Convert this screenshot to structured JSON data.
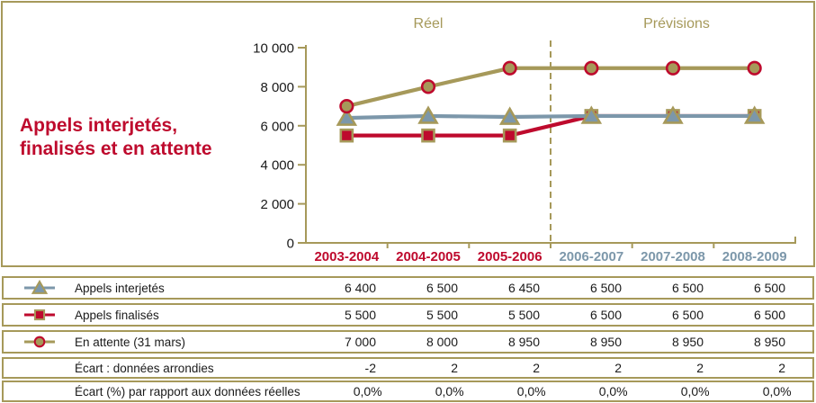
{
  "colors": {
    "olive": "#A6995A",
    "crimson": "#BE0A2D",
    "blue_gray": "#7C97AA",
    "text": "#1a1a1a",
    "background": "#FFFFFF"
  },
  "chart_title": {
    "line1": "Appels interjetés,",
    "line2": "finalisés et en attente"
  },
  "chart_data": {
    "type": "line",
    "categories": [
      "2003-2004",
      "2004-2005",
      "2005-2006",
      "2006-2007",
      "2007-2008",
      "2008-2009"
    ],
    "real_categories_count": 3,
    "period_labels": {
      "real": "Réel",
      "forecast": "Prévisions"
    },
    "series": [
      {
        "name": "Appels interjetés",
        "marker": "triangle",
        "color": "#7C97AA",
        "marker_fill": "#7C97AA",
        "marker_stroke": "#A6995A",
        "values": [
          6400,
          6500,
          6450,
          6500,
          6500,
          6500
        ]
      },
      {
        "name": "Appels finalisés",
        "marker": "square",
        "color": "#BE0A2D",
        "marker_fill": "#BE0A2D",
        "marker_stroke": "#A6995A",
        "values": [
          5500,
          5500,
          5500,
          6500,
          6500,
          6500
        ]
      },
      {
        "name": "En attente (31 mars)",
        "marker": "circle",
        "color": "#A6995A",
        "marker_fill": "#A6995A",
        "marker_stroke": "#BE0A2D",
        "values": [
          7000,
          8000,
          8950,
          8950,
          8950,
          8950
        ]
      }
    ],
    "draw_order": [
      1,
      0,
      2
    ],
    "ylim": [
      0,
      10000
    ],
    "ytick_values": [
      0,
      2000,
      4000,
      6000,
      8000,
      10000
    ],
    "ytick_labels": [
      "0",
      "2 000",
      "4 000",
      "6 000",
      "8 000",
      "10 000"
    ],
    "divider_after_index": 2,
    "grid": false,
    "legend_position": "table-below"
  },
  "appeals_table": {
    "rows": [
      {
        "label": "Appels interjetés",
        "marker": "triangle",
        "values": [
          "6 400",
          "6 500",
          "6 450",
          "6 500",
          "6 500",
          "6 500"
        ]
      },
      {
        "label": "Appels finalisés",
        "marker": "square",
        "values": [
          "5 500",
          "5 500",
          "5 500",
          "6 500",
          "6 500",
          "6 500"
        ]
      },
      {
        "label": "En attente (31 mars)",
        "marker": "circle",
        "values": [
          "7 000",
          "8 000",
          "8 950",
          "8 950",
          "8 950",
          "8 950"
        ]
      }
    ]
  },
  "ecart_table": {
    "rows": [
      {
        "label": "Écart : données arrondies",
        "values": [
          "-2",
          "2",
          "2",
          "2",
          "2",
          "2"
        ]
      },
      {
        "label": "Écart (%) par rapport aux données réelles",
        "values": [
          "0,0%",
          "0,0%",
          "0,0%",
          "0,0%",
          "0,0%",
          "0,0%"
        ]
      }
    ]
  }
}
